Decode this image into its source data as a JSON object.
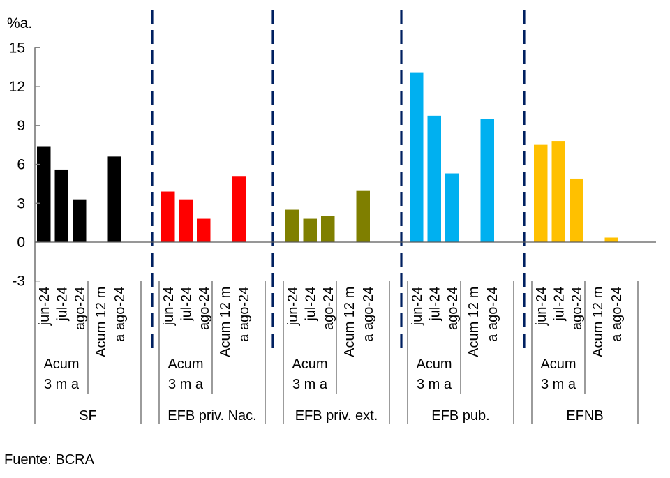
{
  "chart_data": {
    "type": "bar",
    "title": "",
    "ylabel": "%a.",
    "xlabel": "",
    "ylim": [
      -3,
      15
    ],
    "yticks": [
      15,
      12,
      9,
      6,
      3,
      0,
      -3
    ],
    "grid": false,
    "legend": "none",
    "groups": [
      {
        "name": "SF",
        "color": "#000000",
        "bars": [
          {
            "label": "jun-24",
            "value": 7.4
          },
          {
            "label": "jul-24",
            "value": 5.6
          },
          {
            "label": "ago-24",
            "value": 3.3
          },
          {
            "label": "Acum 12 m a ago-24",
            "value": 6.6
          }
        ]
      },
      {
        "name": "EFB priv. Nac.",
        "color": "#ff0000",
        "bars": [
          {
            "label": "jun-24",
            "value": 3.9
          },
          {
            "label": "jul-24",
            "value": 3.3
          },
          {
            "label": "ago-24",
            "value": 1.8
          },
          {
            "label": "Acum 12 m a ago-24",
            "value": 5.1
          }
        ]
      },
      {
        "name": "EFB priv. ext.",
        "color": "#7f7f00",
        "bars": [
          {
            "label": "jun-24",
            "value": 2.5
          },
          {
            "label": "jul-24",
            "value": 1.8
          },
          {
            "label": "ago-24",
            "value": 2.0
          },
          {
            "label": "Acum 12 m a ago-24",
            "value": 4.0
          }
        ]
      },
      {
        "name": "EFB pub.",
        "color": "#00b0f0",
        "bars": [
          {
            "label": "jun-24",
            "value": 13.1
          },
          {
            "label": "jul-24",
            "value": 9.75
          },
          {
            "label": "ago-24",
            "value": 5.3
          },
          {
            "label": "Acum 12 m a ago-24",
            "value": 9.5
          }
        ]
      },
      {
        "name": "EFNB",
        "color": "#ffc000",
        "bars": [
          {
            "label": "jun-24",
            "value": 7.5
          },
          {
            "label": "jul-24",
            "value": 7.8
          },
          {
            "label": "ago-24",
            "value": 4.9
          },
          {
            "label": "Acum 12 m a ago-24",
            "value": 0.35
          }
        ]
      }
    ],
    "subgroup_labels": {
      "monthly": [
        "jun-24",
        "jul-24",
        "ago-24"
      ],
      "monthly_group_line1": "Acum",
      "monthly_group_line2": "3 m a",
      "acum_line1": "Acum 12 m",
      "acum_line2": "a ago-24"
    },
    "separator_color": "#002060"
  },
  "source": "Fuente: BCRA"
}
